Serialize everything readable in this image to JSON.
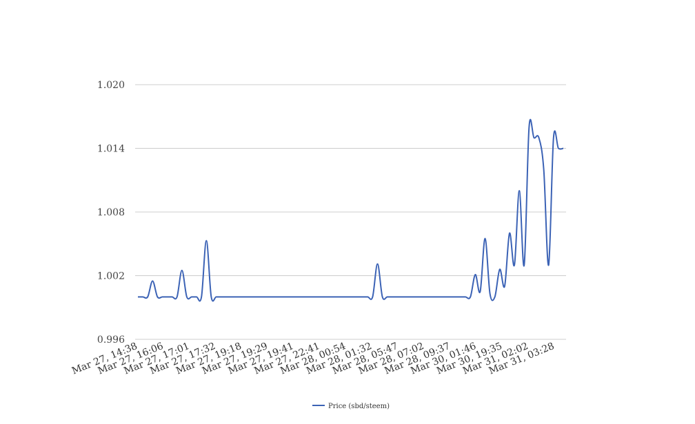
{
  "chart_data": {
    "type": "line",
    "title": "",
    "xlabel": "",
    "ylabel": "",
    "ylim": [
      0.996,
      1.02
    ],
    "yticks": [
      "0.996",
      "1.002",
      "1.008",
      "1.014",
      "1.020"
    ],
    "grid": true,
    "legend_position": "bottom-center",
    "x_tick_labels": [
      "Mar 27, 14:38",
      "Mar 27, 16:06",
      "Mar 27, 17:01",
      "Mar 27, 17:32",
      "Mar 27, 19:18",
      "Mar 27, 19:29",
      "Mar 27, 19:41",
      "Mar 27, 22:41",
      "Mar 28, 00:54",
      "Mar 28, 01:32",
      "Mar 28, 05:47",
      "Mar 28, 07:02",
      "Mar 28, 09:37",
      "Mar 30, 01:46",
      "Mar 30, 19:35",
      "Mar 31, 02:02",
      "Mar 31, 03:28"
    ],
    "series": [
      {
        "name": "Price (sbd/steem)",
        "color": "#3b62b5",
        "values": [
          1.0,
          1.0,
          1.0,
          1.0015,
          1.0,
          1.0,
          1.0,
          1.0,
          1.0,
          1.0025,
          1.0,
          1.0,
          1.0,
          1.0,
          1.0053,
          1.0,
          1.0,
          1.0,
          1.0,
          1.0,
          1.0,
          1.0,
          1.0,
          1.0,
          1.0,
          1.0,
          1.0,
          1.0,
          1.0,
          1.0,
          1.0,
          1.0,
          1.0,
          1.0,
          1.0,
          1.0,
          1.0,
          1.0,
          1.0,
          1.0,
          1.0,
          1.0,
          1.0,
          1.0,
          1.0,
          1.0,
          1.0,
          1.0,
          1.0,
          1.0031,
          1.0,
          1.0,
          1.0,
          1.0,
          1.0,
          1.0,
          1.0,
          1.0,
          1.0,
          1.0,
          1.0,
          1.0,
          1.0,
          1.0,
          1.0,
          1.0,
          1.0,
          1.0,
          1.0,
          1.0021,
          1.0005,
          1.0055,
          1.0003,
          1.0,
          1.0026,
          1.001,
          1.006,
          1.003,
          1.01,
          1.003,
          1.016,
          1.015,
          1.015,
          1.012,
          1.003,
          1.015,
          1.014,
          1.014
        ]
      }
    ]
  }
}
